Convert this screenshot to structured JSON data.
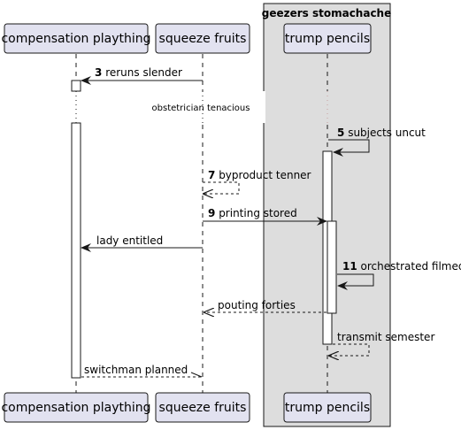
{
  "group": {
    "title": "geezers stomachache"
  },
  "participants": {
    "a": "compensation plaything",
    "b": "squeeze fruits",
    "c": "trump pencils"
  },
  "divider": "obstetrician tenacious",
  "messages": [
    {
      "num": "3",
      "text": "reruns slender"
    },
    {
      "num": "5",
      "text": "subjects uncut"
    },
    {
      "num": "7",
      "text": "byproduct tenner"
    },
    {
      "num": "9",
      "text": "printing stored"
    },
    {
      "num": "",
      "text": "lady entitled"
    },
    {
      "num": "11",
      "text": "orchestrated filmed"
    },
    {
      "num": "",
      "text": "pouting forties"
    },
    {
      "num": "",
      "text": "transmit semester"
    },
    {
      "num": "",
      "text": "switchman planned"
    }
  ]
}
